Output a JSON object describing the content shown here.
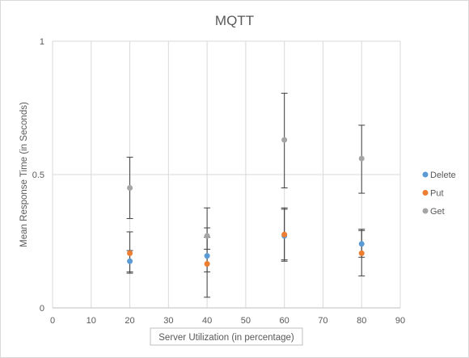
{
  "chart_data": {
    "type": "scatter",
    "title": "MQTT",
    "xlabel": "Server Utilization (in percentage)",
    "ylabel": "Mean Response Time (in Seconds)",
    "xlim": [
      0,
      90
    ],
    "ylim": [
      0,
      1
    ],
    "x_ticks": [
      "0",
      "10",
      "20",
      "30",
      "40",
      "50",
      "60",
      "70",
      "80",
      "90"
    ],
    "y_ticks": [
      "0",
      "0.5",
      "1"
    ],
    "grid": true,
    "legend_position": "right",
    "series": [
      {
        "name": "Delete",
        "color": "#5b9bd5",
        "x": [
          20,
          40,
          60,
          80
        ],
        "y": [
          0.175,
          0.195,
          0.27,
          0.24
        ],
        "err_low": [
          0.135,
          0.04,
          0.175,
          0.12
        ],
        "err_high": [
          0.215,
          0.265,
          0.37,
          0.29
        ]
      },
      {
        "name": "Put",
        "color": "#ed7d31",
        "x": [
          20,
          40,
          60,
          80
        ],
        "y": [
          0.205,
          0.165,
          0.275,
          0.205
        ],
        "err_low": [
          0.13,
          0.135,
          0.18,
          0.19
        ],
        "err_high": [
          0.285,
          0.3,
          0.375,
          0.295
        ]
      },
      {
        "name": "Get",
        "color": "#a5a5a5",
        "x": [
          20,
          40,
          60,
          80
        ],
        "y": [
          0.45,
          0.27,
          0.63,
          0.56
        ],
        "err_low": [
          0.335,
          0.22,
          0.45,
          0.43
        ],
        "err_high": [
          0.565,
          0.375,
          0.805,
          0.685
        ]
      }
    ]
  }
}
